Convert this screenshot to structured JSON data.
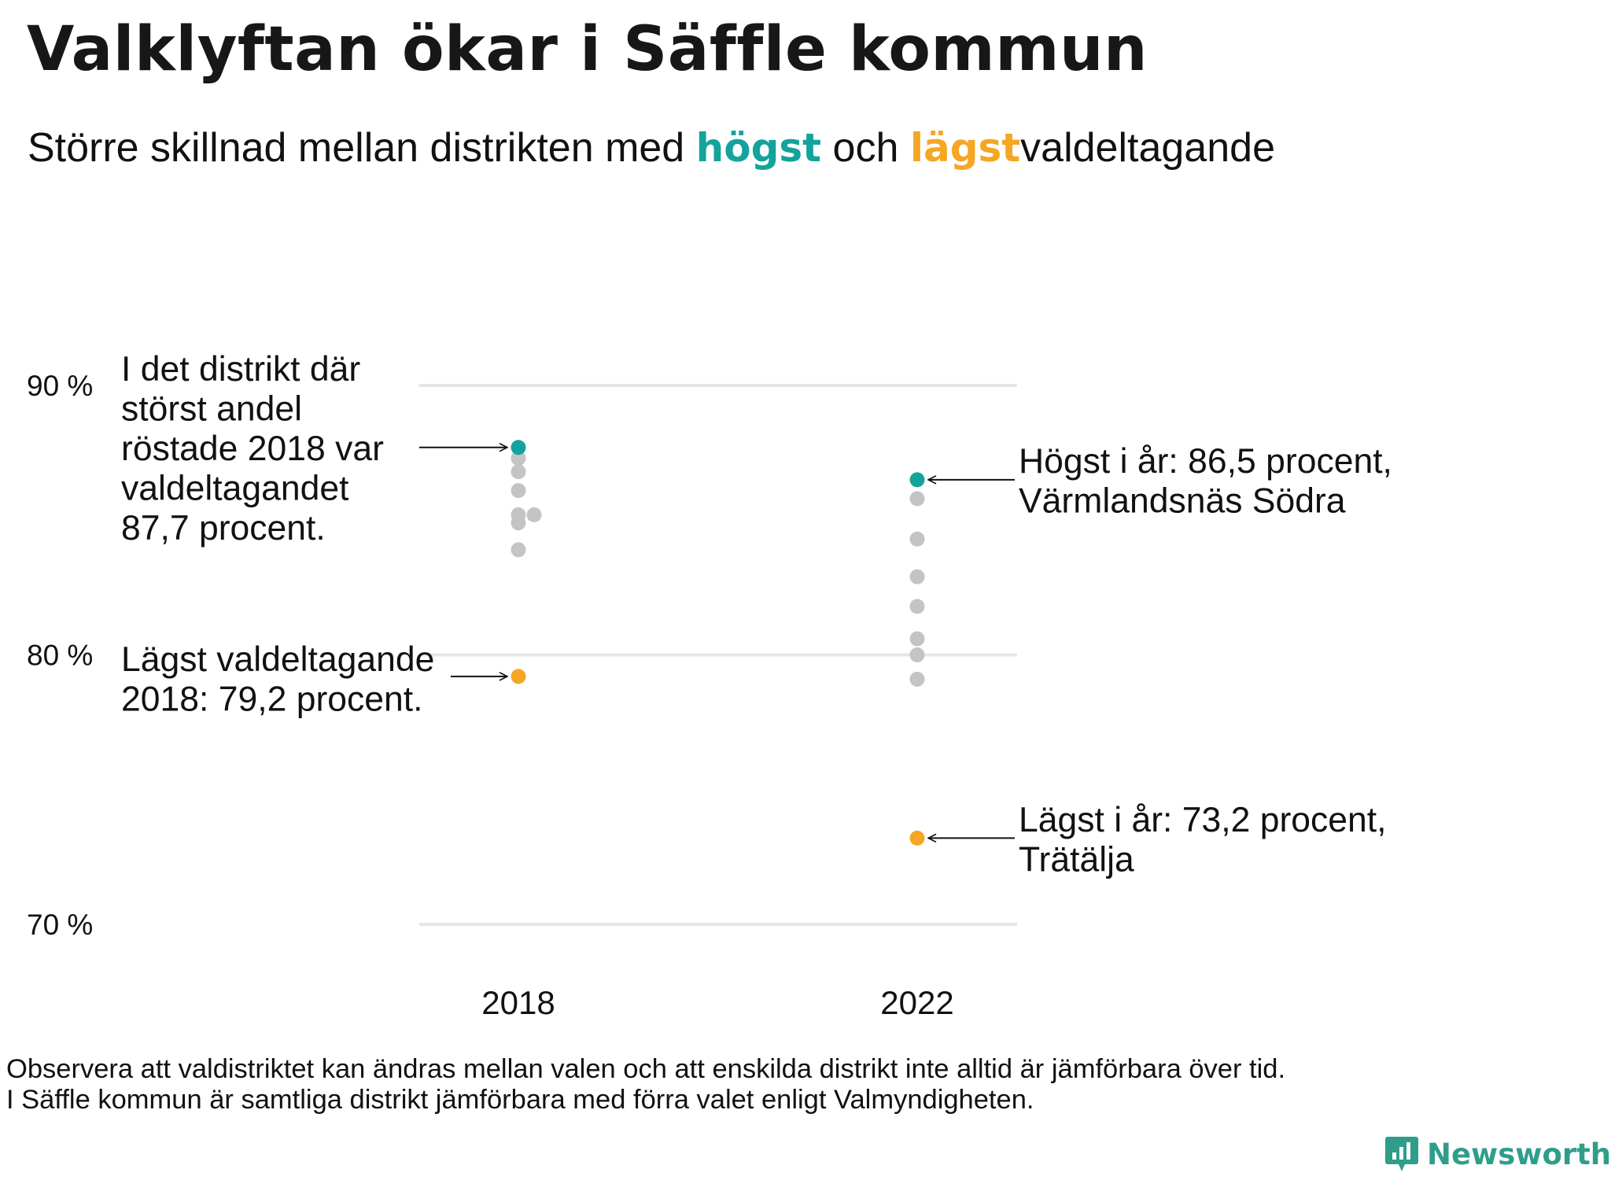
{
  "title": "Valklyftan ökar i Säffle kommun",
  "subtitle": {
    "part1": "Större  skillnad  mellan  distrikten  med ",
    "highlight_high": "högst",
    "part2": " och ",
    "highlight_low": "lägst",
    "part3": "valdeltagande"
  },
  "colors": {
    "high": "#14a39a",
    "low": "#f5a623",
    "other": "#c4c4c4",
    "grid": "#e6e6e6",
    "text": "#111111"
  },
  "chart_data": {
    "type": "scatter",
    "categories": [
      "2018",
      "2022"
    ],
    "ylim": [
      70,
      90
    ],
    "yticks": [
      {
        "value": 90,
        "label": "90 %"
      },
      {
        "value": 80,
        "label": "80 %"
      },
      {
        "value": 70,
        "label": "70 %"
      }
    ],
    "series": [
      {
        "category": "2018",
        "points": [
          {
            "value": 87.7,
            "role": "high"
          },
          {
            "value": 87.3,
            "role": "other"
          },
          {
            "value": 86.8,
            "role": "other"
          },
          {
            "value": 86.1,
            "role": "other"
          },
          {
            "value": 85.2,
            "role": "other"
          },
          {
            "value": 85.2,
            "role": "other",
            "offset": true
          },
          {
            "value": 84.9,
            "role": "other"
          },
          {
            "value": 83.9,
            "role": "other"
          },
          {
            "value": 79.2,
            "role": "low"
          }
        ]
      },
      {
        "category": "2022",
        "points": [
          {
            "value": 86.5,
            "role": "high"
          },
          {
            "value": 85.8,
            "role": "other"
          },
          {
            "value": 84.3,
            "role": "other"
          },
          {
            "value": 82.9,
            "role": "other"
          },
          {
            "value": 81.8,
            "role": "other"
          },
          {
            "value": 80.6,
            "role": "other"
          },
          {
            "value": 80.0,
            "role": "other"
          },
          {
            "value": 79.1,
            "role": "other"
          },
          {
            "value": 73.2,
            "role": "low"
          }
        ]
      }
    ],
    "annotations": {
      "high_2018": [
        "I det distrikt där",
        "störst andel",
        "röstade 2018 var",
        "valdeltagandet",
        "87,7 procent."
      ],
      "low_2018": [
        "Lägst valdeltagande",
        "2018: 79,2 procent."
      ],
      "high_2022": [
        "Högst i år: 86,5 procent,",
        "Värmlandsnäs Södra"
      ],
      "low_2022": [
        "Lägst i år: 73,2 procent,",
        "Trätälja"
      ]
    }
  },
  "footnote": {
    "line1": "Observera att valdistriktet kan ändras mellan valen och att enskilda distrikt inte alltid är jämförbara över tid.",
    "line2": "I Säffle kommun är samtliga distrikt jämförbara med förra valet enligt Valmyndigheten."
  },
  "brand": {
    "name": "Newsworthy",
    "icon": "newsworthy-logo-icon"
  }
}
